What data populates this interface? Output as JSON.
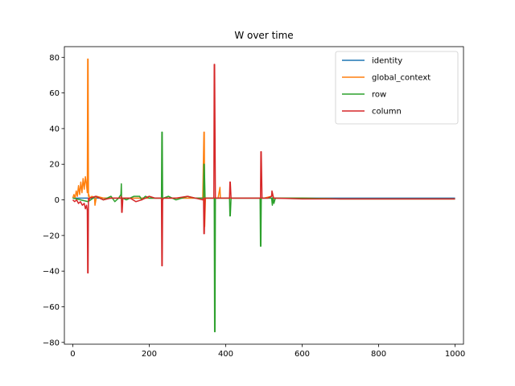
{
  "chart_data": {
    "type": "line",
    "title": "W over time",
    "xlabel": "",
    "ylabel": "",
    "xlim": [
      -22,
      1022
    ],
    "ylim": [
      -81,
      86
    ],
    "xticks": [
      0,
      200,
      400,
      600,
      800,
      1000
    ],
    "xtick_labels": [
      "0",
      "200",
      "400",
      "600",
      "800",
      "1000"
    ],
    "yticks": [
      -80,
      -60,
      -40,
      -20,
      0,
      20,
      40,
      60,
      80
    ],
    "ytick_labels": [
      "−80",
      "−60",
      "−40",
      "−20",
      "0",
      "20",
      "40",
      "60",
      "80"
    ],
    "grid": false,
    "legend_position": "top-right",
    "series": [
      {
        "name": "identity",
        "color": "#1f77b4",
        "x": [
          0,
          1000
        ],
        "y": [
          1,
          1
        ]
      },
      {
        "name": "global_context",
        "color": "#ff7f0e",
        "x": [
          0,
          3,
          6,
          9,
          12,
          15,
          18,
          21,
          24,
          27,
          30,
          33,
          36,
          38,
          39,
          40,
          41,
          42,
          44,
          50,
          57,
          58,
          62,
          80,
          100,
          130,
          160,
          200,
          260,
          300,
          340,
          343,
          344,
          345,
          347,
          350,
          380,
          385,
          386,
          390,
          420,
          460,
          500,
          520,
          522,
          525,
          600,
          700,
          800,
          900,
          1000
        ],
        "y": [
          1,
          3,
          1,
          5,
          2,
          8,
          3,
          10,
          4,
          12,
          6,
          13,
          8,
          4,
          79,
          79,
          2,
          3,
          1,
          2,
          1,
          -3,
          2,
          1,
          1,
          1,
          1,
          1,
          1,
          1,
          1,
          38,
          38,
          -15,
          1,
          1,
          1,
          7,
          1,
          1,
          1,
          1,
          1,
          2,
          4,
          1,
          1,
          0.5,
          0.5,
          0.5,
          0.5
        ]
      },
      {
        "name": "row",
        "color": "#2ca02c",
        "x": [
          0,
          20,
          40,
          60,
          80,
          100,
          110,
          120,
          126,
          127,
          128,
          129,
          131,
          140,
          160,
          175,
          180,
          190,
          200,
          220,
          232,
          233,
          234,
          235,
          237,
          250,
          270,
          300,
          320,
          340,
          342,
          343,
          344,
          346,
          360,
          370,
          371,
          372,
          373,
          375,
          385,
          400,
          410,
          411,
          412,
          414,
          440,
          470,
          490,
          491,
          492,
          493,
          495,
          510,
          520,
          522,
          524,
          526,
          530,
          600,
          700,
          800,
          900,
          1000
        ],
        "y": [
          1,
          0,
          -1,
          2,
          0,
          2,
          -1,
          1,
          3,
          9,
          -3,
          1,
          1,
          0,
          2,
          2,
          0,
          2,
          1,
          1,
          1,
          38,
          38,
          0,
          1,
          2,
          0,
          2,
          1,
          1,
          1,
          20,
          20,
          1,
          1,
          1,
          -74,
          -74,
          1,
          1,
          1,
          1,
          1,
          -9,
          -9,
          1,
          1,
          1,
          1,
          -26,
          -26,
          1,
          1,
          1,
          1,
          -3,
          2,
          -2,
          1,
          1,
          0.5,
          0.5,
          0.5,
          0.5
        ]
      },
      {
        "name": "column",
        "color": "#d62728",
        "x": [
          0,
          5,
          10,
          15,
          20,
          25,
          30,
          33,
          36,
          38,
          39,
          40,
          41,
          42,
          45,
          60,
          80,
          100,
          120,
          126,
          127,
          128,
          129,
          131,
          150,
          165,
          180,
          200,
          215,
          218,
          232,
          233,
          234,
          235,
          237,
          250,
          270,
          300,
          320,
          340,
          342,
          343,
          344,
          346,
          360,
          368,
          369,
          370,
          371,
          373,
          390,
          410,
          411,
          412,
          414,
          440,
          470,
          490,
          491,
          492,
          493,
          495,
          510,
          520,
          521,
          522,
          525,
          530,
          600,
          700,
          800,
          900,
          1000
        ],
        "y": [
          0,
          -1,
          0,
          -2,
          -1,
          -3,
          -2,
          -5,
          -3,
          -6,
          -41,
          -41,
          1,
          0,
          1,
          2,
          0,
          1,
          1,
          1,
          2,
          -7,
          -7,
          1,
          1,
          -1,
          0,
          2,
          1,
          1,
          1,
          -37,
          -37,
          0,
          1,
          1,
          1,
          2,
          1,
          0,
          1,
          -19,
          -19,
          1,
          1,
          1,
          1,
          76,
          76,
          1,
          1,
          1,
          10,
          10,
          1,
          1,
          1,
          1,
          1,
          27,
          27,
          1,
          1,
          2,
          5,
          4,
          1,
          1,
          0.5,
          0.5,
          0.5,
          0.5,
          0.5
        ]
      }
    ]
  }
}
